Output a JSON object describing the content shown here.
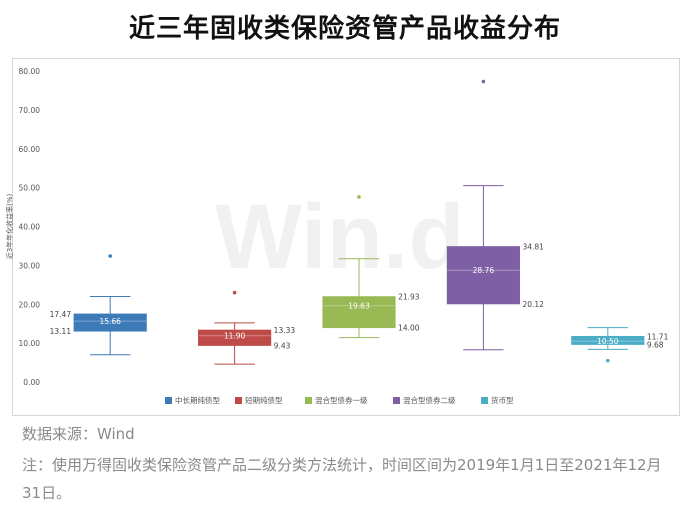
{
  "page": {
    "title": "近三年固收类保险资管产品收益分布",
    "watermark": "Win.d",
    "source": "数据来源：Wind",
    "note": "注：使用万得固收类保险资管产品二级分类方法统计，时间区间为2019年1月1日至2021年12月31日。"
  },
  "chart_data": {
    "type": "boxplot",
    "title": "",
    "ylabel": "近3年年化收益率(%)",
    "ylim": [
      0,
      80
    ],
    "yticks": [
      "0.00",
      "10.00",
      "20.00",
      "30.00",
      "40.00",
      "50.00",
      "60.00",
      "70.00",
      "80.00"
    ],
    "grid": false,
    "legend_position": "bottom",
    "categories": [
      "中长期纯债型",
      "短期纯债型",
      "混合型债券一级",
      "混合型债券二级",
      "货币型"
    ],
    "colors": [
      "#3d7ab8",
      "#be4b48",
      "#98b954",
      "#7e5ea4",
      "#4bacc6"
    ],
    "series": [
      {
        "name": "中长期纯债型",
        "whisker_low": 7.0,
        "q1": 13.11,
        "median": 15.66,
        "q3": 17.47,
        "whisker_high": 22.0,
        "outliers": [
          32.4
        ],
        "labels": {
          "q3": "17.47",
          "q1": "13.11",
          "median": "15.66"
        }
      },
      {
        "name": "短期纯债型",
        "whisker_low": 4.6,
        "q1": 9.43,
        "median": 11.9,
        "q3": 13.33,
        "whisker_high": 15.2,
        "outliers": [
          23.0
        ],
        "labels": {
          "q3": "13.33",
          "q1": "9.43",
          "median": "11.90"
        }
      },
      {
        "name": "混合型债券一级",
        "whisker_low": 11.4,
        "q1": 14.0,
        "median": 19.63,
        "q3": 21.93,
        "whisker_high": 31.7,
        "outliers": [
          47.6
        ],
        "labels": {
          "q3": "21.93",
          "q1": "14.00",
          "median": "19.63"
        }
      },
      {
        "name": "混合型债券二级",
        "whisker_low": 8.3,
        "q1": 20.12,
        "median": 28.76,
        "q3": 34.81,
        "whisker_high": 50.5,
        "outliers": [
          77.3
        ],
        "labels": {
          "q3": "34.81",
          "q1": "20.12",
          "median": "28.76"
        }
      },
      {
        "name": "货币型",
        "whisker_low": 8.4,
        "q1": 9.68,
        "median": 10.5,
        "q3": 11.71,
        "whisker_high": 14.0,
        "outliers": [
          5.5
        ],
        "labels": {
          "q3": "11.71",
          "q1": "9.68",
          "median": "10.50"
        }
      }
    ]
  }
}
